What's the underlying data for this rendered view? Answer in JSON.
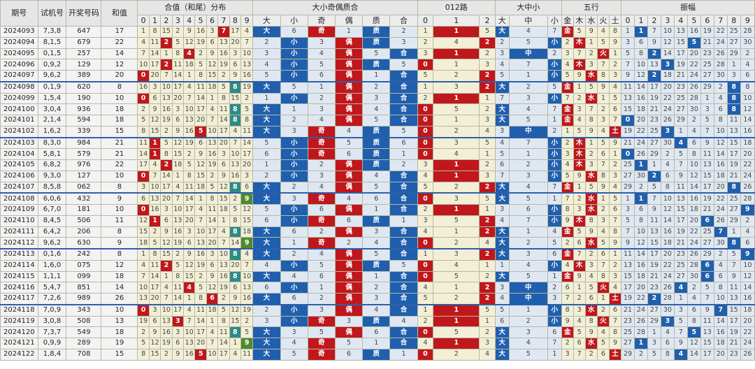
{
  "header": {
    "issue": "期号",
    "trial": "试机号",
    "draw": "开奖号码",
    "sum": "和值",
    "group_sum_tail": "合值（和尾）分布",
    "group_size_parity": "大小奇偶质合",
    "group_012": "012路",
    "group_bms": "大中小",
    "group_wuxing": "五行",
    "group_amp": "振幅"
  },
  "sub": {
    "digits": [
      "0",
      "1",
      "2",
      "3",
      "4",
      "5",
      "6",
      "7",
      "8",
      "9"
    ],
    "sp": [
      "大",
      "小",
      "奇",
      "偶",
      "质",
      "合"
    ],
    "route": [
      "0",
      "1",
      "2"
    ],
    "bms": [
      "大",
      "中",
      "小"
    ],
    "wx": [
      "金",
      "木",
      "水",
      "火",
      "土"
    ]
  },
  "rows": [
    {
      "issue": "2024093",
      "trial": "7,3,8",
      "draw": "647",
      "sum": "17",
      "tail": 7,
      "sz": "大",
      "oe": "奇",
      "pc": "质",
      "r": 1,
      "bms": "大",
      "wx": "金",
      "amp": 1
    },
    {
      "issue": "2024094",
      "trial": "8,1,5",
      "draw": "679",
      "sum": "22",
      "tail": 2,
      "sz": "小",
      "oe": "偶",
      "pc": "质",
      "r": 2,
      "bms": "小",
      "wx": "木",
      "amp": 5
    },
    {
      "issue": "2024095",
      "trial": "0,1,5",
      "draw": "257",
      "sum": "14",
      "tail": 4,
      "sz": "小",
      "oe": "偶",
      "pc": "合",
      "r": 1,
      "bms": "中",
      "wx": "火",
      "amp": 2
    },
    {
      "issue": "2024096",
      "trial": "0,9,2",
      "draw": "129",
      "sum": "12",
      "tail": 2,
      "sz": "小",
      "oe": "偶",
      "pc": "质",
      "r": 0,
      "bms": "小",
      "wx": "木",
      "amp": 3
    },
    {
      "issue": "2024097",
      "trial": "9,6,2",
      "draw": "389",
      "sum": "20",
      "tail": 0,
      "sz": "小",
      "oe": "偶",
      "pc": "合",
      "r": 2,
      "bms": "小",
      "wx": "水",
      "amp": 2
    },
    {
      "issue": "2024098",
      "trial": "0,1,9",
      "draw": "620",
      "sum": "8",
      "tail": 8,
      "sz": "大",
      "oe": "偶",
      "pc": "合",
      "r": 2,
      "bms": "大",
      "wx": "金",
      "amp": 8
    },
    {
      "issue": "2024099",
      "trial": "1,5,4",
      "draw": "190",
      "sum": "10",
      "tail": 0,
      "sz": "小",
      "oe": "偶",
      "pc": "合",
      "r": 1,
      "bms": "小",
      "wx": "水",
      "amp": 8
    },
    {
      "issue": "2024100",
      "trial": "3,0,4",
      "draw": "936",
      "sum": "18",
      "tail": 8,
      "sz": "大",
      "oe": "偶",
      "pc": "合",
      "r": 0,
      "bms": "大",
      "wx": "金",
      "amp": 8
    },
    {
      "issue": "2024101",
      "trial": "2,1,4",
      "draw": "594",
      "sum": "18",
      "tail": 8,
      "sz": "大",
      "oe": "偶",
      "pc": "合",
      "r": 0,
      "bms": "大",
      "wx": "金",
      "amp": 0
    },
    {
      "issue": "2024102",
      "trial": "1,6,2",
      "draw": "339",
      "sum": "15",
      "tail": 5,
      "sz": "大",
      "oe": "奇",
      "pc": "质",
      "r": 0,
      "bms": "中",
      "wx": "土",
      "amp": 3
    },
    {
      "issue": "2024103",
      "trial": "8,3,0",
      "draw": "984",
      "sum": "21",
      "tail": 1,
      "sz": "小",
      "oe": "奇",
      "pc": "质",
      "r": 0,
      "bms": "小",
      "wx": "木",
      "amp": 4
    },
    {
      "issue": "2024104",
      "trial": "5,8,1",
      "draw": "579",
      "sum": "21",
      "tail": 1,
      "sz": "小",
      "oe": "奇",
      "pc": "质",
      "r": 0,
      "bms": "小",
      "wx": "木",
      "amp": 0
    },
    {
      "issue": "2024105",
      "trial": "6,8,2",
      "draw": "976",
      "sum": "22",
      "tail": 2,
      "sz": "小",
      "oe": "偶",
      "pc": "质",
      "r": 1,
      "bms": "小",
      "wx": "木",
      "amp": 1
    },
    {
      "issue": "2024106",
      "trial": "9,3,0",
      "draw": "127",
      "sum": "10",
      "tail": 0,
      "sz": "小",
      "oe": "偶",
      "pc": "合",
      "r": 1,
      "bms": "小",
      "wx": "水",
      "amp": 2
    },
    {
      "issue": "2024107",
      "trial": "8,5,8",
      "draw": "062",
      "sum": "8",
      "tail": 8,
      "sz": "大",
      "oe": "偶",
      "pc": "合",
      "r": 2,
      "bms": "大",
      "wx": "金",
      "amp": 8
    },
    {
      "issue": "2024108",
      "trial": "6,0,6",
      "draw": "432",
      "sum": "9",
      "tail": 9,
      "sz": "大",
      "oe": "奇",
      "pc": "合",
      "r": 0,
      "bms": "大",
      "wx": "水",
      "amp": 1
    },
    {
      "issue": "2024109",
      "trial": "6,7,0",
      "draw": "181",
      "sum": "10",
      "tail": 0,
      "sz": "小",
      "oe": "偶",
      "pc": "合",
      "r": 1,
      "bms": "小",
      "wx": "水",
      "amp": 9
    },
    {
      "issue": "2024110",
      "trial": "8,4,5",
      "draw": "506",
      "sum": "11",
      "tail": 1,
      "sz": "小",
      "oe": "奇",
      "pc": "质",
      "r": 2,
      "bms": "小",
      "wx": "木",
      "amp": 6
    },
    {
      "issue": "2024111",
      "trial": "6,4,2",
      "draw": "206",
      "sum": "8",
      "tail": 8,
      "sz": "大",
      "oe": "偶",
      "pc": "合",
      "r": 2,
      "bms": "大",
      "wx": "金",
      "amp": 7
    },
    {
      "issue": "2024112",
      "trial": "9,6,2",
      "draw": "630",
      "sum": "9",
      "tail": 9,
      "sz": "大",
      "oe": "奇",
      "pc": "合",
      "r": 0,
      "bms": "大",
      "wx": "水",
      "amp": 8
    },
    {
      "issue": "2024113",
      "trial": "0,1,6",
      "draw": "242",
      "sum": "8",
      "tail": 8,
      "sz": "大",
      "oe": "偶",
      "pc": "合",
      "r": 2,
      "bms": "大",
      "wx": "金",
      "amp": 9
    },
    {
      "issue": "2024114",
      "trial": "1,6,0",
      "draw": "075",
      "sum": "12",
      "tail": 2,
      "sz": "小",
      "oe": "偶",
      "pc": "质",
      "r": 0,
      "bms": "小",
      "wx": "木",
      "amp": 6
    },
    {
      "issue": "2024115",
      "trial": "1,1,1",
      "draw": "099",
      "sum": "18",
      "tail": 8,
      "sz": "大",
      "oe": "偶",
      "pc": "合",
      "r": 0,
      "bms": "大",
      "wx": "金",
      "amp": 6
    },
    {
      "issue": "2024116",
      "trial": "5,4,7",
      "draw": "851",
      "sum": "14",
      "tail": 4,
      "sz": "小",
      "oe": "偶",
      "pc": "合",
      "r": 2,
      "bms": "中",
      "wx": "火",
      "amp": 4
    },
    {
      "issue": "2024117",
      "trial": "7,2,6",
      "draw": "989",
      "sum": "26",
      "tail": 6,
      "sz": "大",
      "oe": "偶",
      "pc": "合",
      "r": 2,
      "bms": "中",
      "wx": "土",
      "amp": 2
    },
    {
      "issue": "2024118",
      "trial": "7,0,9",
      "draw": "343",
      "sum": "10",
      "tail": 0,
      "sz": "小",
      "oe": "偶",
      "pc": "合",
      "r": 1,
      "bms": "小",
      "wx": "水",
      "amp": 7
    },
    {
      "issue": "2024119",
      "trial": "3,0,8",
      "draw": "508",
      "sum": "13",
      "tail": 3,
      "sz": "小",
      "oe": "奇",
      "pc": "质",
      "r": 1,
      "bms": "小",
      "wx": "火",
      "amp": 3
    },
    {
      "issue": "2024120",
      "trial": "7,3,7",
      "draw": "549",
      "sum": "18",
      "tail": 8,
      "sz": "大",
      "oe": "偶",
      "pc": "合",
      "r": 0,
      "bms": "大",
      "wx": "金",
      "amp": 5
    },
    {
      "issue": "2024121",
      "trial": "0,9,9",
      "draw": "289",
      "sum": "19",
      "tail": 9,
      "sz": "大",
      "oe": "奇",
      "pc": "合",
      "r": 1,
      "bms": "大",
      "wx": "水",
      "amp": 1
    },
    {
      "issue": "2024122",
      "trial": "1,8,4",
      "draw": "708",
      "sum": "15",
      "tail": 5,
      "sz": "大",
      "oe": "奇",
      "pc": "质",
      "r": 0,
      "bms": "大",
      "wx": "土",
      "amp": 4
    }
  ]
}
